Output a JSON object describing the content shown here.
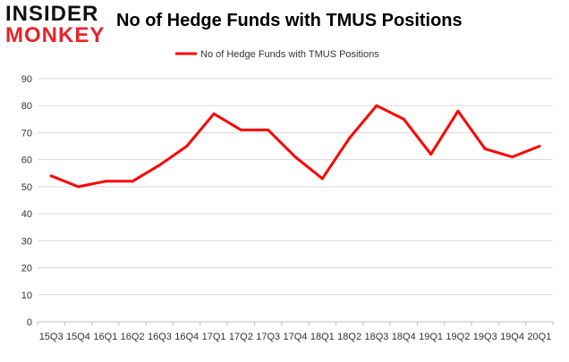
{
  "logo": {
    "line1": "INSIDER",
    "line2": "MONKEY"
  },
  "chart_data": {
    "type": "line",
    "title": "No of Hedge Funds with TMUS Positions",
    "xlabel": "",
    "ylabel": "",
    "categories": [
      "15Q3",
      "15Q4",
      "16Q1",
      "16Q2",
      "16Q3",
      "16Q4",
      "17Q1",
      "17Q2",
      "17Q3",
      "17Q4",
      "18Q1",
      "18Q2",
      "18Q3",
      "18Q4",
      "19Q1",
      "19Q2",
      "19Q3",
      "19Q4",
      "20Q1"
    ],
    "series": [
      {
        "name": "No of Hedge Funds with TMUS Positions",
        "values": [
          54,
          50,
          52,
          52,
          58,
          65,
          77,
          71,
          71,
          61,
          53,
          68,
          80,
          75,
          62,
          78,
          64,
          61,
          65
        ],
        "color": "#ff0000"
      }
    ],
    "ylim": [
      0,
      90
    ],
    "yticks": [
      0,
      10,
      20,
      30,
      40,
      50,
      60,
      70,
      80,
      90
    ],
    "grid": true,
    "legend_position": "top-center"
  }
}
